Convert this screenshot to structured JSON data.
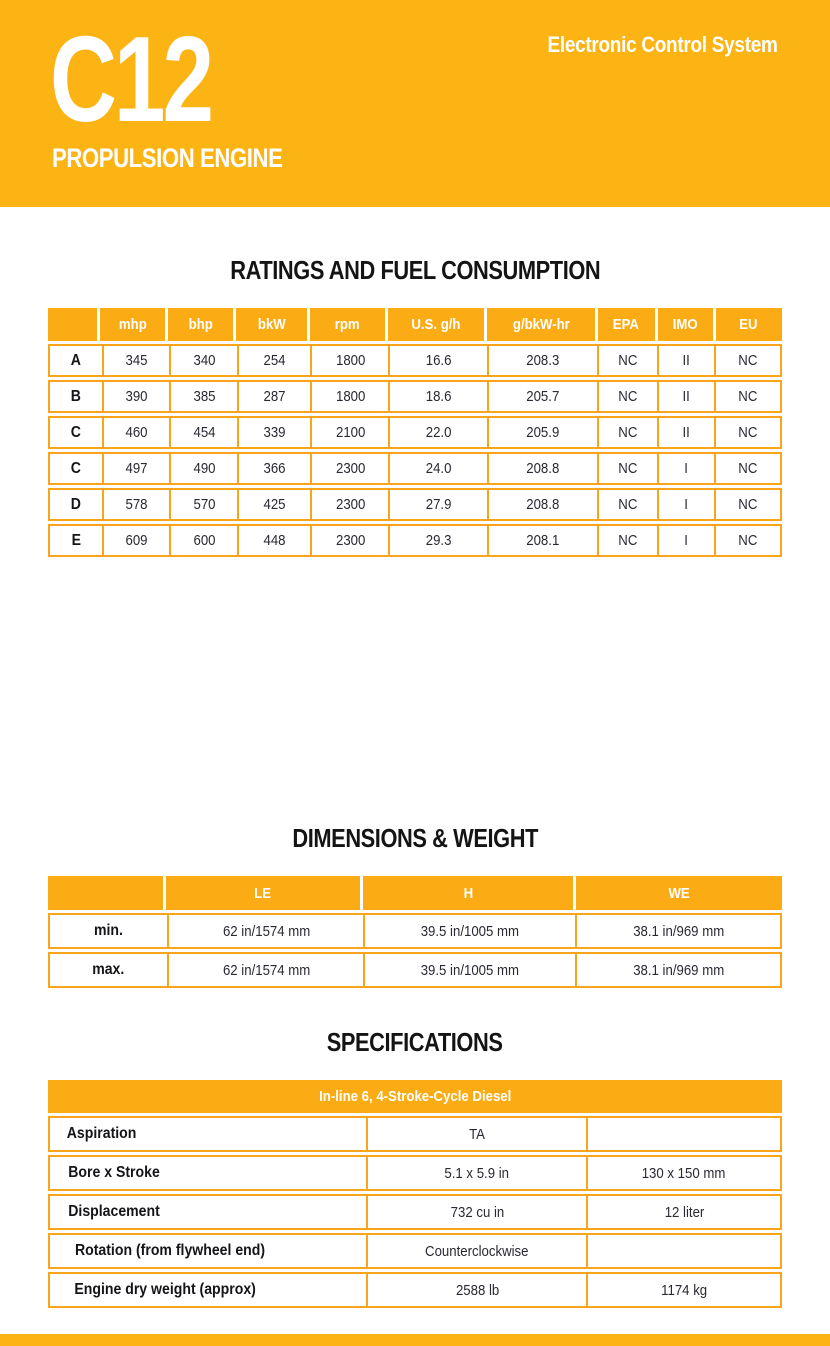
{
  "header": {
    "model": "C12",
    "tagline": "Electronic Control System",
    "subtitle": "PROPULSION ENGINE"
  },
  "colors": {
    "banner_amber": "#FCB414",
    "table_header_amber": "#FBAC15",
    "table_border_amber": "#F9A51B",
    "text": "#1D1C22",
    "header_text": "#FFFFFF"
  },
  "ratings": {
    "title": "RATINGS AND FUEL CONSUMPTION",
    "columns": [
      "",
      "mhp",
      "bhp",
      "bkW",
      "rpm",
      "U.S. g/h",
      "g/bkW-hr",
      "EPA",
      "IMO",
      "EU"
    ],
    "rows": [
      {
        "label": "A",
        "values": [
          "345",
          "340",
          "254",
          "1800",
          "16.6",
          "208.3",
          "NC",
          "II",
          "NC"
        ]
      },
      {
        "label": "B",
        "values": [
          "390",
          "385",
          "287",
          "1800",
          "18.6",
          "205.7",
          "NC",
          "II",
          "NC"
        ]
      },
      {
        "label": "C",
        "values": [
          "460",
          "454",
          "339",
          "2100",
          "22.0",
          "205.9",
          "NC",
          "II",
          "NC"
        ]
      },
      {
        "label": "C",
        "values": [
          "497",
          "490",
          "366",
          "2300",
          "24.0",
          "208.8",
          "NC",
          "I",
          "NC"
        ]
      },
      {
        "label": "D",
        "values": [
          "578",
          "570",
          "425",
          "2300",
          "27.9",
          "208.8",
          "NC",
          "I",
          "NC"
        ]
      },
      {
        "label": "E",
        "values": [
          "609",
          "600",
          "448",
          "2300",
          "29.3",
          "208.1",
          "NC",
          "I",
          "NC"
        ]
      }
    ]
  },
  "dimensions": {
    "title": "DIMENSIONS & WEIGHT",
    "columns": [
      "",
      "LE",
      "H",
      "WE"
    ],
    "rows": [
      {
        "label": "min.",
        "values": [
          "62 in/1574 mm",
          "39.5 in/1005 mm",
          "38.1 in/969 mm"
        ]
      },
      {
        "label": "max.",
        "values": [
          "62 in/1574 mm",
          "39.5 in/1005 mm",
          "38.1 in/969 mm"
        ]
      }
    ]
  },
  "specifications": {
    "title": "SPECIFICATIONS",
    "header": "In-line 6, 4-Stroke-Cycle Diesel",
    "rows": [
      {
        "label": "Aspiration",
        "values": [
          "TA",
          ""
        ]
      },
      {
        "label": "Bore x Stroke",
        "values": [
          "5.1 x 5.9 in",
          "130 x 150 mm"
        ]
      },
      {
        "label": "Displacement",
        "values": [
          "732 cu in",
          "12 liter"
        ]
      },
      {
        "label": "Rotation (from flywheel end)",
        "values": [
          "Counterclockwise",
          ""
        ]
      },
      {
        "label": "Engine dry weight (approx)",
        "values": [
          "2588 lb",
          "1174 kg"
        ]
      }
    ]
  }
}
